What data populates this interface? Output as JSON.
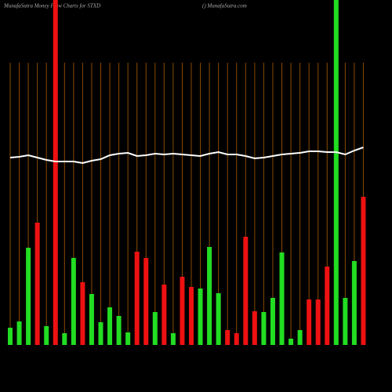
{
  "chart_data": {
    "type": "bar",
    "title": "MunafaSutra  Money Flow  Charts for STXD",
    "subtitle": "() MunafaSutra.com",
    "categories": [
      null,
      null,
      null,
      null,
      null,
      null,
      null,
      null,
      null,
      null,
      null,
      null,
      null,
      null,
      null,
      null,
      null,
      null,
      null,
      null,
      null,
      null,
      null,
      null,
      null,
      null,
      null,
      null,
      null,
      null,
      null,
      null,
      null,
      null,
      null,
      null,
      null,
      null,
      null,
      null
    ],
    "values": [
      22,
      30,
      124,
      156,
      24,
      440,
      15,
      111,
      80,
      65,
      29,
      48,
      37,
      16,
      119,
      111,
      42,
      77,
      15,
      87,
      74,
      72,
      125,
      66,
      19,
      15,
      138,
      43,
      42,
      60,
      118,
      8,
      19,
      58,
      58,
      100,
      440,
      60,
      107,
      189
    ],
    "colors": [
      "#22dd22",
      "#22dd22",
      "#22dd22",
      "#ee1111",
      "#22dd22",
      "#ee1111",
      "#22dd22",
      "#22dd22",
      "#ee1111",
      "#22dd22",
      "#22dd22",
      "#22dd22",
      "#22dd22",
      "#22dd22",
      "#ee1111",
      "#ee1111",
      "#22dd22",
      "#ee1111",
      "#22dd22",
      "#ee1111",
      "#ee1111",
      "#22dd22",
      "#22dd22",
      "#22dd22",
      "#ee1111",
      "#ee1111",
      "#ee1111",
      "#ee1111",
      "#22dd22",
      "#22dd22",
      "#22dd22",
      "#22dd22",
      "#22dd22",
      "#ee1111",
      "#ee1111",
      "#ee1111",
      "#22dd22",
      "#22dd22",
      "#22dd22",
      "#ee1111"
    ],
    "line": {
      "color": "#ffffff",
      "values": [
        239,
        240,
        242,
        239,
        236,
        234,
        234,
        234,
        232,
        235,
        237,
        242,
        244,
        245,
        241,
        242,
        244,
        243,
        244,
        243,
        242,
        241,
        244,
        246,
        243,
        243,
        241,
        238,
        239,
        241,
        243,
        244,
        245,
        247,
        247,
        246,
        246,
        243,
        248,
        252
      ]
    },
    "ylim": [
      0,
      440
    ],
    "grid": true,
    "grid_color": "#8a4b00"
  }
}
